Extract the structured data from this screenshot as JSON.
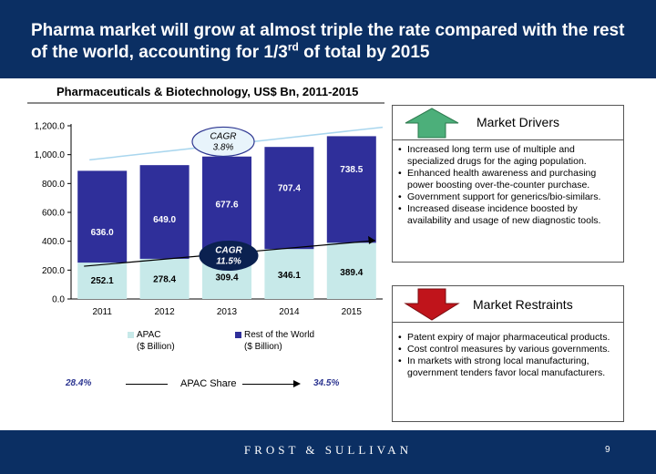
{
  "header": {
    "title_part1": "Pharma market will grow at almost triple the rate compared with the rest of the world, accounting for 1/3",
    "title_sup": "rd",
    "title_part2": " of  total by 2015"
  },
  "chart_data": {
    "type": "bar",
    "stacked": true,
    "title": "Pharmaceuticals & Biotechnology, US$ Bn, 2011-2015",
    "categories": [
      "2011",
      "2012",
      "2013",
      "2014",
      "2015"
    ],
    "series": [
      {
        "name": "APAC ($ Billion)",
        "values": [
          252.1,
          278.4,
          309.4,
          346.1,
          389.4
        ],
        "labels": [
          "252.1",
          "278.4",
          "309.4",
          "346.1",
          "389.4"
        ],
        "color": "#c7e9e9"
      },
      {
        "name": "Rest of the World ($ Billion)",
        "values": [
          636.0,
          649.0,
          677.6,
          707.4,
          738.5
        ],
        "labels": [
          "636.0",
          "649.0",
          "677.6",
          "707.4",
          "738.5"
        ],
        "color": "#2f2f9a"
      }
    ],
    "ylim": [
      0,
      1200
    ],
    "yticks": [
      "0.0",
      "200.0",
      "400.0",
      "600.0",
      "800.0",
      "1,000.0",
      "1,200.0"
    ],
    "annotations": {
      "cagr_row": {
        "label": "CAGR",
        "value": "3.8%"
      },
      "cagr_apac": {
        "label": "CAGR",
        "value": "11.5%"
      }
    },
    "grid": false
  },
  "legend": {
    "apac_line1": "APAC",
    "apac_line2": "($ Billion)",
    "row_line1": "Rest of the World",
    "row_line2": "($ Billion)"
  },
  "share": {
    "start": "28.4%",
    "label": "APAC Share",
    "end": "34.5%"
  },
  "drivers": {
    "title": "Market Drivers",
    "items": [
      "Increased long term use of multiple and specialized drugs for the aging population.",
      "Enhanced health awareness and purchasing power boosting over-the-counter purchase.",
      "Government support for generics/bio-similars.",
      "Increased disease incidence boosted by availability and usage of new diagnostic tools."
    ]
  },
  "restraints": {
    "title": "Market Restraints",
    "items": [
      "Patent expiry of major pharmaceutical products.",
      "Cost control measures by various governments.",
      "In markets with strong local manufacturing, government tenders favor local manufacturers."
    ]
  },
  "footer": {
    "brand": "FROST & SULLIVAN",
    "page_number": "9"
  },
  "colors": {
    "header_bg": "#0b2f63",
    "apac": "#c7e9e9",
    "rest_of_world": "#2f2f9a",
    "up_arrow": "#4caf7a",
    "down_arrow": "#c0141b"
  }
}
